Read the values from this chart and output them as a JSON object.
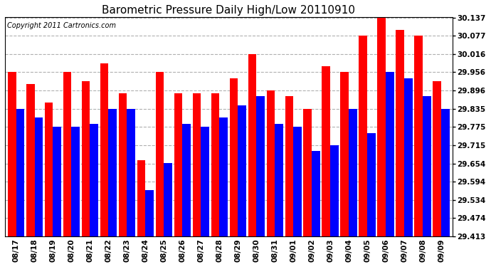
{
  "title": "Barometric Pressure Daily High/Low 20110910",
  "copyright": "Copyright 2011 Cartronics.com",
  "dates": [
    "08/17",
    "08/18",
    "08/19",
    "08/20",
    "08/21",
    "08/22",
    "08/23",
    "08/24",
    "08/25",
    "08/26",
    "08/27",
    "08/28",
    "08/29",
    "08/30",
    "08/31",
    "09/01",
    "09/02",
    "09/03",
    "09/04",
    "09/05",
    "09/06",
    "09/07",
    "09/08",
    "09/09"
  ],
  "highs": [
    29.956,
    29.916,
    29.856,
    29.956,
    29.926,
    29.986,
    29.886,
    29.666,
    29.956,
    29.886,
    29.886,
    29.886,
    29.936,
    30.016,
    29.896,
    29.876,
    29.836,
    29.976,
    29.956,
    30.077,
    30.137,
    30.097,
    30.077,
    29.926
  ],
  "lows": [
    29.836,
    29.806,
    29.776,
    29.776,
    29.786,
    29.836,
    29.836,
    29.566,
    29.656,
    29.786,
    29.776,
    29.806,
    29.846,
    29.876,
    29.786,
    29.776,
    29.696,
    29.716,
    29.836,
    29.756,
    29.956,
    29.936,
    29.876,
    29.836
  ],
  "high_color": "#ff0000",
  "low_color": "#0000ff",
  "bg_color": "#ffffff",
  "grid_color": "#b0b0b0",
  "yticks": [
    29.413,
    29.474,
    29.534,
    29.594,
    29.654,
    29.715,
    29.775,
    29.835,
    29.896,
    29.956,
    30.016,
    30.077,
    30.137
  ],
  "ymin": 29.413,
  "ymax": 30.137,
  "title_fontsize": 11,
  "copyright_fontsize": 7
}
